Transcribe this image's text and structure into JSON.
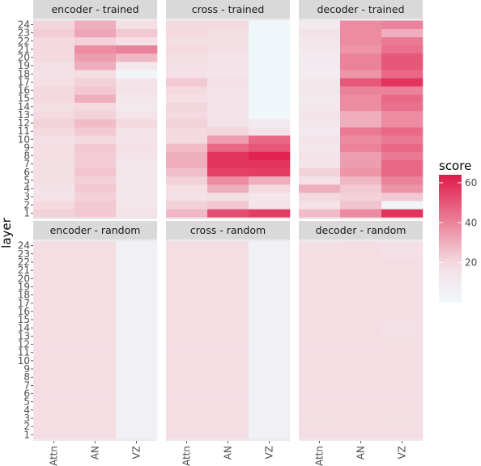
{
  "chart_data": {
    "type": "heatmap",
    "ylabel": "layer",
    "x_categories": [
      "Attn",
      "AN",
      "VZ"
    ],
    "y_categories": [
      "1",
      "2",
      "3",
      "4",
      "5",
      "6",
      "7",
      "8",
      "9",
      "10",
      "11",
      "12",
      "13",
      "14",
      "15",
      "16",
      "17",
      "18",
      "19",
      "20",
      "21",
      "22",
      "23",
      "24"
    ],
    "legend": {
      "title": "score",
      "ticks": [
        20,
        40,
        60
      ],
      "range": [
        0,
        64
      ],
      "colors": {
        "low": "#f0f8fb",
        "mid": "#f4dde3",
        "high": "#e01a48"
      },
      "placement": "right"
    },
    "panels": [
      {
        "title": "encoder - trained",
        "values": {
          "Attn": [
            22,
            20,
            16,
            15,
            18,
            18,
            18,
            19,
            19,
            17,
            20,
            22,
            20,
            18,
            20,
            20,
            18,
            16,
            18,
            20,
            20,
            20,
            23,
            21
          ],
          "AN": [
            24,
            24,
            22,
            24,
            22,
            25,
            23,
            23,
            24,
            20,
            24,
            27,
            22,
            20,
            30,
            24,
            22,
            19,
            30,
            34,
            38,
            22,
            32,
            30
          ],
          "VZ": [
            15,
            13,
            12,
            13,
            12,
            13,
            13,
            15,
            17,
            14,
            16,
            20,
            14,
            11,
            12,
            16,
            14,
            2,
            12,
            28,
            40,
            17,
            24,
            18
          ]
        }
      },
      {
        "title": "cross - trained",
        "values": {
          "Attn": [
            28,
            22,
            17,
            18,
            22,
            26,
            30,
            30,
            27,
            20,
            20,
            22,
            20,
            21,
            18,
            20,
            24,
            17,
            18,
            18,
            20,
            18,
            20,
            20
          ],
          "AN": [
            52,
            24,
            18,
            30,
            38,
            55,
            58,
            58,
            46,
            34,
            21,
            16,
            14,
            16,
            14,
            16,
            17,
            14,
            14,
            16,
            18,
            18,
            18,
            20
          ],
          "VZ": [
            56,
            14,
            12,
            20,
            30,
            56,
            58,
            62,
            50,
            46,
            14,
            10,
            1,
            1,
            1,
            1,
            1,
            1,
            1,
            1,
            1,
            1,
            1,
            1
          ]
        }
      },
      {
        "title": "decoder - trained",
        "values": {
          "Attn": [
            27,
            16,
            20,
            30,
            16,
            22,
            14,
            15,
            12,
            14,
            10,
            12,
            14,
            12,
            10,
            12,
            12,
            9,
            10,
            10,
            12,
            12,
            16,
            10
          ],
          "AN": [
            38,
            25,
            22,
            24,
            28,
            36,
            34,
            34,
            40,
            38,
            42,
            30,
            30,
            38,
            38,
            40,
            50,
            36,
            40,
            40,
            36,
            38,
            38,
            38
          ],
          "VZ": [
            58,
            2,
            24,
            36,
            40,
            46,
            46,
            42,
            46,
            42,
            46,
            38,
            38,
            44,
            46,
            40,
            58,
            46,
            50,
            50,
            44,
            42,
            30,
            40
          ]
        }
      },
      {
        "title": "encoder - random",
        "values": {
          "Attn": [
            19,
            19,
            19,
            19,
            19,
            19,
            19,
            19,
            19,
            19,
            19,
            19,
            19,
            19,
            19,
            19,
            19,
            19,
            19,
            19,
            19,
            19,
            19,
            19
          ],
          "AN": [
            19,
            19,
            19,
            19,
            19,
            19,
            19,
            19,
            19,
            19,
            19,
            19,
            19,
            19,
            19,
            19,
            19,
            19,
            19,
            19,
            19,
            19,
            19,
            19
          ],
          "VZ": [
            5,
            5,
            5,
            5,
            5,
            5,
            5,
            5,
            5,
            5,
            5,
            5,
            5,
            5,
            5,
            5,
            5,
            5,
            5,
            5,
            5,
            5,
            5,
            5
          ]
        }
      },
      {
        "title": "cross - random",
        "values": {
          "Attn": [
            19,
            19,
            19,
            19,
            19,
            19,
            19,
            19,
            19,
            19,
            19,
            19,
            19,
            19,
            19,
            19,
            19,
            19,
            19,
            19,
            19,
            19,
            19,
            19
          ],
          "AN": [
            19,
            19,
            19,
            19,
            19,
            19,
            19,
            19,
            19,
            19,
            19,
            19,
            19,
            19,
            19,
            19,
            19,
            19,
            19,
            19,
            19,
            19,
            19,
            19
          ],
          "VZ": [
            5,
            5,
            5,
            5,
            5,
            5,
            5,
            5,
            5,
            5,
            5,
            5,
            5,
            5,
            5,
            5,
            5,
            5,
            5,
            5,
            5,
            5,
            5,
            5
          ]
        }
      },
      {
        "title": "decoder - random",
        "values": {
          "Attn": [
            19,
            19,
            18,
            19,
            19,
            19,
            19,
            19,
            19,
            19,
            19,
            19,
            18,
            19,
            19,
            19,
            19,
            19,
            19,
            19,
            18,
            19,
            19,
            18
          ],
          "AN": [
            19,
            19,
            19,
            19,
            19,
            19,
            19,
            19,
            19,
            19,
            19,
            19,
            19,
            19,
            19,
            19,
            19,
            19,
            19,
            19,
            19,
            19,
            19,
            19
          ],
          "VZ": [
            19,
            19,
            18,
            19,
            19,
            19,
            19,
            19,
            19,
            19,
            19,
            18,
            18,
            17,
            18,
            19,
            19,
            19,
            19,
            19,
            18,
            19,
            17,
            18
          ]
        }
      }
    ]
  }
}
